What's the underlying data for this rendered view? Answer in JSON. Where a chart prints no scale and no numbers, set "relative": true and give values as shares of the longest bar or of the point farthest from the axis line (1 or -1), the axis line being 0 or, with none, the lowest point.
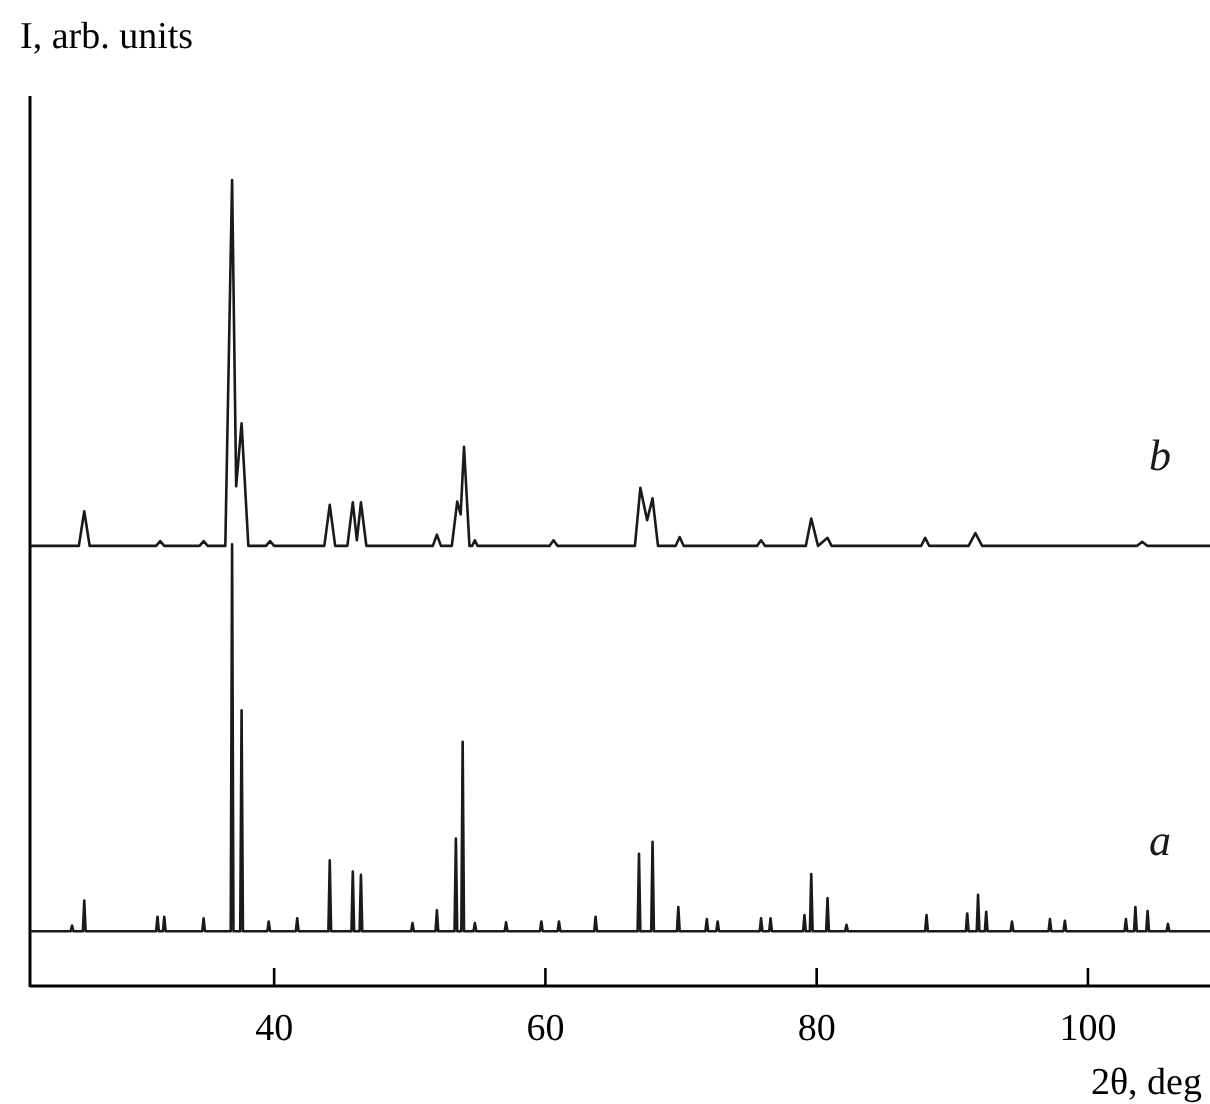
{
  "chart_data": {
    "type": "line",
    "relative": true,
    "xlabel": "2θ, deg",
    "ylabel": "I, arb. units",
    "xlim": [
      22,
      109
    ],
    "xticks": [
      40,
      60,
      80,
      100
    ],
    "grid": false,
    "marker": "none",
    "line_style": "solid",
    "series": [
      {
        "name": "a",
        "color": "#1a1a1a",
        "x": [
          22,
          25.0,
          25.1,
          25.2,
          25.9,
          26.0,
          26.1,
          31.3,
          31.4,
          31.5,
          31.8,
          31.9,
          32.0,
          34.7,
          34.8,
          34.9,
          36.8,
          36.9,
          37.0,
          37.5,
          37.6,
          37.7,
          39.5,
          39.6,
          39.7,
          41.6,
          41.7,
          41.8,
          44.0,
          44.1,
          44.2,
          45.7,
          45.8,
          45.9,
          46.3,
          46.4,
          46.5,
          50.1,
          50.2,
          50.3,
          51.9,
          52.0,
          52.1,
          53.3,
          53.4,
          53.5,
          53.8,
          53.9,
          54.0,
          54.7,
          54.8,
          54.9,
          57.0,
          57.1,
          57.2,
          59.6,
          59.7,
          59.8,
          60.9,
          61.0,
          61.1,
          63.6,
          63.7,
          63.8,
          66.8,
          66.9,
          67.0,
          67.8,
          67.9,
          68.0,
          69.7,
          69.8,
          69.9,
          71.8,
          71.9,
          72.0,
          72.6,
          72.7,
          72.8,
          75.8,
          75.9,
          76.0,
          76.5,
          76.6,
          76.7,
          79.0,
          79.1,
          79.2,
          79.5,
          79.6,
          79.7,
          80.7,
          80.8,
          80.9,
          82.1,
          82.2,
          82.3,
          88.0,
          88.1,
          88.2,
          91.0,
          91.1,
          91.2,
          91.8,
          91.9,
          92.0,
          92.4,
          92.5,
          92.6,
          94.3,
          94.4,
          94.5,
          97.1,
          97.2,
          97.3,
          98.2,
          98.3,
          98.4,
          102.7,
          102.8,
          102.9,
          103.4,
          103.5,
          103.6,
          104.3,
          104.4,
          104.5,
          105.8,
          105.9,
          106.0,
          109
        ],
        "values": [
          0.068,
          0.068,
          0.075,
          0.068,
          0.068,
          0.106,
          0.068,
          0.068,
          0.086,
          0.068,
          0.068,
          0.086,
          0.068,
          0.068,
          0.084,
          0.068,
          0.068,
          0.548,
          0.068,
          0.068,
          0.342,
          0.068,
          0.068,
          0.08,
          0.068,
          0.068,
          0.084,
          0.068,
          0.068,
          0.156,
          0.068,
          0.068,
          0.142,
          0.068,
          0.068,
          0.138,
          0.068,
          0.068,
          0.078,
          0.068,
          0.068,
          0.094,
          0.068,
          0.068,
          0.183,
          0.068,
          0.068,
          0.303,
          0.068,
          0.068,
          0.078,
          0.068,
          0.068,
          0.079,
          0.068,
          0.068,
          0.08,
          0.068,
          0.068,
          0.08,
          0.068,
          0.068,
          0.086,
          0.068,
          0.068,
          0.164,
          0.068,
          0.068,
          0.179,
          0.068,
          0.068,
          0.098,
          0.068,
          0.068,
          0.083,
          0.068,
          0.068,
          0.08,
          0.068,
          0.068,
          0.084,
          0.068,
          0.068,
          0.084,
          0.068,
          0.068,
          0.088,
          0.068,
          0.068,
          0.139,
          0.068,
          0.068,
          0.109,
          0.068,
          0.068,
          0.076,
          0.068,
          0.068,
          0.088,
          0.068,
          0.068,
          0.09,
          0.068,
          0.068,
          0.113,
          0.068,
          0.068,
          0.092,
          0.068,
          0.068,
          0.08,
          0.068,
          0.068,
          0.083,
          0.068,
          0.068,
          0.081,
          0.068,
          0.068,
          0.083,
          0.068,
          0.068,
          0.098,
          0.068,
          0.068,
          0.093,
          0.068,
          0.068,
          0.077,
          0.068,
          0.068
        ]
      },
      {
        "name": "b",
        "color": "#1a1a1a",
        "x": [
          22,
          25.6,
          26.0,
          26.4,
          31.3,
          31.6,
          31.9,
          34.5,
          34.8,
          35.1,
          36.4,
          36.9,
          37.2,
          37.6,
          38.1,
          39.4,
          39.7,
          40.0,
          43.7,
          44.1,
          44.5,
          45.4,
          45.8,
          46.1,
          46.4,
          46.8,
          51.7,
          52.0,
          52.3,
          53.1,
          53.5,
          53.75,
          54.0,
          54.4,
          54.6,
          54.8,
          55.0,
          60.3,
          60.6,
          60.9,
          66.6,
          67.0,
          67.5,
          67.9,
          68.3,
          69.6,
          69.9,
          70.2,
          75.6,
          75.9,
          76.2,
          79.2,
          79.6,
          80.1,
          80.8,
          81.1,
          87.7,
          88.0,
          88.3,
          91.2,
          91.7,
          92.2,
          103.6,
          104.0,
          104.4,
          109
        ],
        "values": [
          0.546,
          0.546,
          0.589,
          0.546,
          0.546,
          0.552,
          0.546,
          0.546,
          0.552,
          0.546,
          0.546,
          1.0,
          0.62,
          0.698,
          0.546,
          0.546,
          0.552,
          0.546,
          0.546,
          0.597,
          0.546,
          0.546,
          0.6,
          0.553,
          0.6,
          0.546,
          0.546,
          0.56,
          0.546,
          0.546,
          0.601,
          0.585,
          0.669,
          0.546,
          0.546,
          0.553,
          0.546,
          0.546,
          0.553,
          0.546,
          0.546,
          0.618,
          0.578,
          0.605,
          0.546,
          0.546,
          0.557,
          0.546,
          0.546,
          0.553,
          0.546,
          0.546,
          0.58,
          0.546,
          0.556,
          0.546,
          0.546,
          0.556,
          0.546,
          0.546,
          0.562,
          0.546,
          0.546,
          0.551,
          0.546,
          0.546
        ]
      }
    ]
  }
}
